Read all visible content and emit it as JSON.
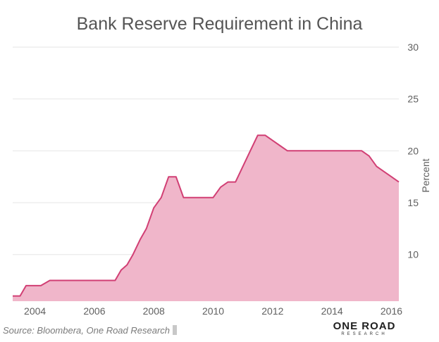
{
  "chart_data": {
    "type": "area",
    "title": "Bank Reserve Requirement in China",
    "ylabel": "Percent",
    "xlabel": "",
    "xlim": [
      2003.25,
      2016.25
    ],
    "ylim": [
      5.5,
      30
    ],
    "x_ticks": [
      "2004",
      "2006",
      "2008",
      "2010",
      "2012",
      "2014",
      "2016"
    ],
    "y_ticks": [
      "10",
      "15",
      "20",
      "25",
      "30"
    ],
    "grid": true,
    "y_axis_side": "right",
    "colors": {
      "fill": "#f0b6ca",
      "line": "#d13f74",
      "grid": "#e6e6e6",
      "text": "#606060"
    },
    "series": [
      {
        "x": [
          2003.25,
          2003.5,
          2003.7,
          2004.2,
          2004.5,
          2005.0,
          2006.0,
          2006.7,
          2006.9,
          2007.1,
          2007.3,
          2007.55,
          2007.75,
          2008.0,
          2008.25,
          2008.5,
          2008.75,
          2009.0,
          2009.5,
          2010.0,
          2010.25,
          2010.5,
          2010.75,
          2011.0,
          2011.25,
          2011.5,
          2011.75,
          2012.0,
          2012.25,
          2012.5,
          2013.0,
          2014.0,
          2015.0,
          2015.25,
          2015.5,
          2015.75,
          2016.0,
          2016.25
        ],
        "y": [
          6.0,
          6.0,
          7.0,
          7.0,
          7.5,
          7.5,
          7.5,
          7.5,
          8.5,
          9.0,
          10.0,
          11.5,
          12.5,
          14.5,
          15.5,
          17.5,
          17.5,
          15.5,
          15.5,
          15.5,
          16.5,
          17.0,
          17.0,
          18.5,
          20.0,
          21.5,
          21.5,
          21.0,
          20.5,
          20.0,
          20.0,
          20.0,
          20.0,
          19.5,
          18.5,
          18.0,
          17.5,
          17.0
        ]
      }
    ]
  },
  "source": "Source: Bloombera, One Road Research",
  "logo": {
    "main": "ONE ROAD",
    "sub": "RESEARCH"
  }
}
